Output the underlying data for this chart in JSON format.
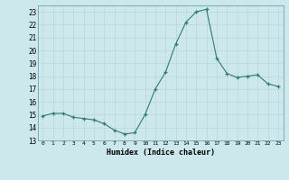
{
  "x": [
    0,
    1,
    2,
    3,
    4,
    5,
    6,
    7,
    8,
    9,
    10,
    11,
    12,
    13,
    14,
    15,
    16,
    17,
    18,
    19,
    20,
    21,
    22,
    23
  ],
  "y": [
    14.9,
    15.1,
    15.1,
    14.8,
    14.7,
    14.6,
    14.3,
    13.8,
    13.5,
    13.6,
    15.0,
    17.0,
    18.3,
    20.5,
    22.2,
    23.0,
    23.2,
    19.4,
    18.2,
    17.9,
    18.0,
    18.1,
    17.4,
    17.2
  ],
  "xlabel": "Humidex (Indice chaleur)",
  "xlim": [
    -0.5,
    23.5
  ],
  "ylim": [
    13,
    23.5
  ],
  "yticks": [
    13,
    14,
    15,
    16,
    17,
    18,
    19,
    20,
    21,
    22,
    23
  ],
  "xtick_labels": [
    "0",
    "1",
    "2",
    "3",
    "4",
    "5",
    "6",
    "7",
    "8",
    "9",
    "10",
    "11",
    "12",
    "13",
    "14",
    "15",
    "16",
    "17",
    "18",
    "19",
    "20",
    "21",
    "22",
    "23"
  ],
  "line_color": "#2e7d6e",
  "bg_color": "#cce8ec",
  "grid_major_color": "#b8d8dc",
  "grid_minor_color": "#c8e0e4"
}
